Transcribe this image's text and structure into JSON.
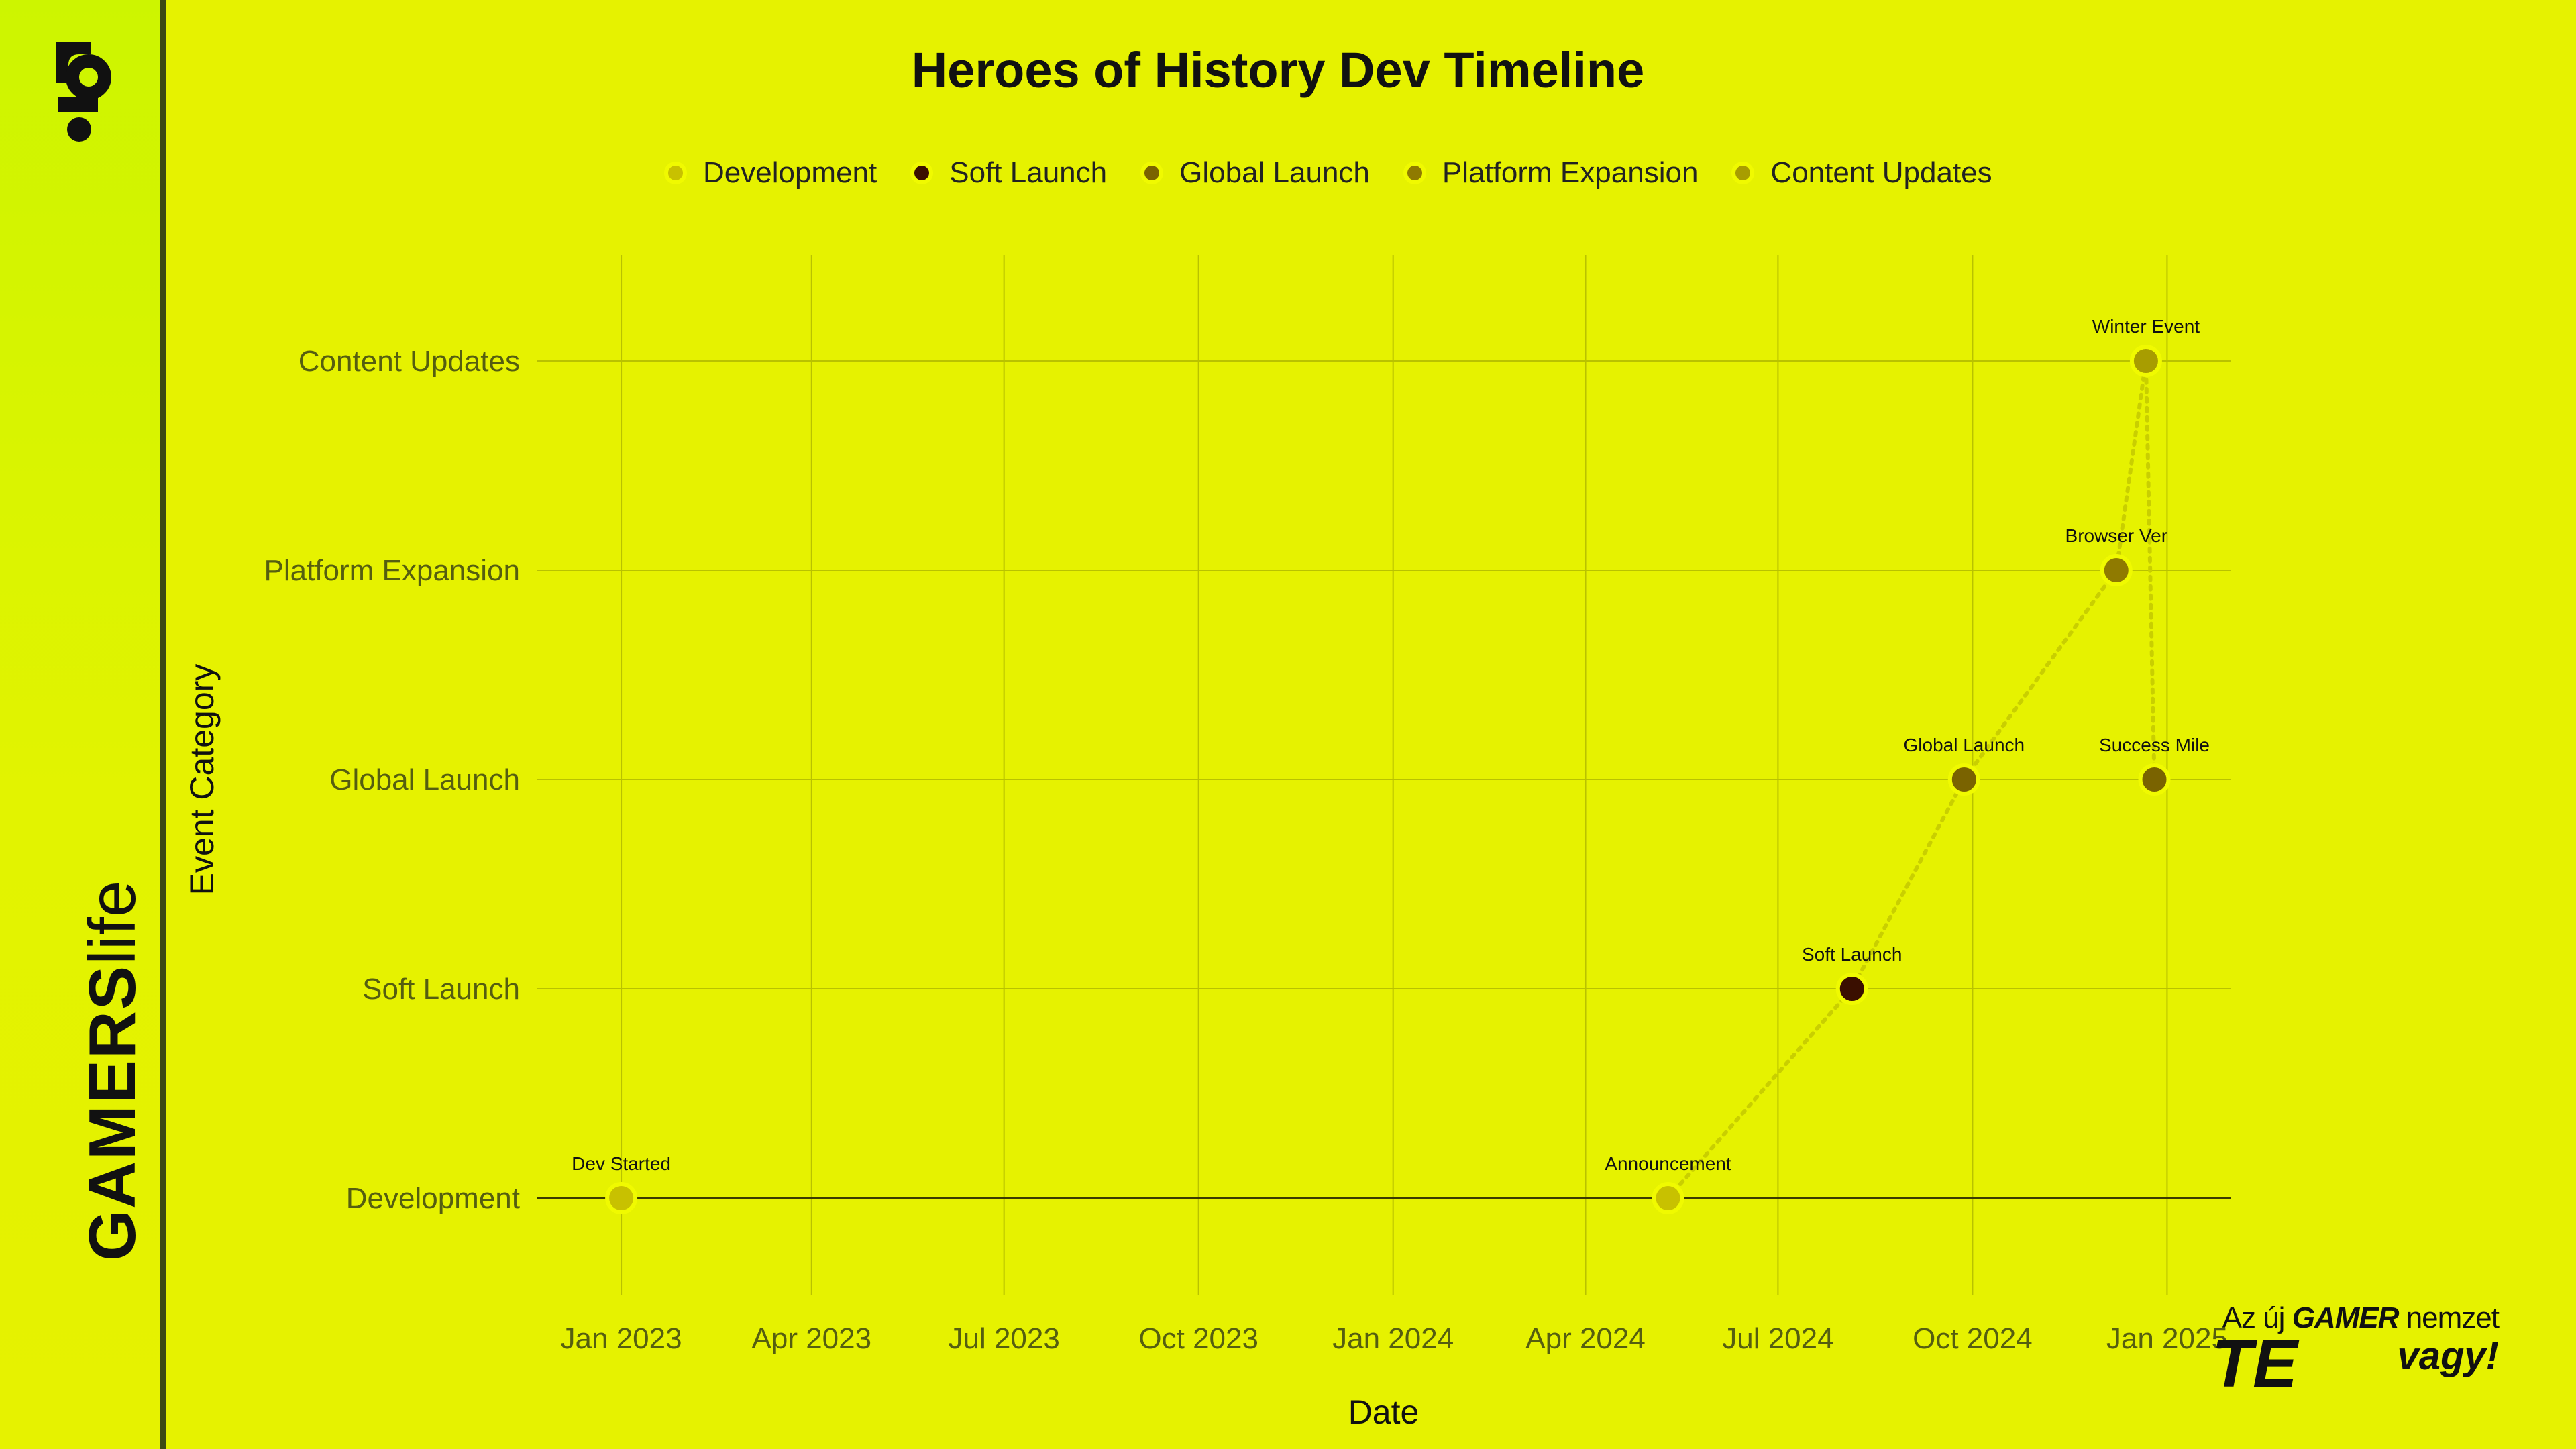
{
  "brand": {
    "name_bold": "GAMERS",
    "name_light": "life"
  },
  "slogan": {
    "prefix": "Az új",
    "gamer": "GAMER",
    "suffix": "nemzet",
    "te": "TE",
    "vagy": "vagy!"
  },
  "colors": {
    "background": "#e6f200",
    "Development": "#c8c100",
    "Soft Launch": "#3a0f00",
    "Global Launch": "#7a6300",
    "Platform Expansion": "#8f7a00",
    "Content Updates": "#a89d00"
  },
  "chart_data": {
    "type": "scatter",
    "title": "Heroes of History Dev Timeline",
    "xlabel": "Date",
    "ylabel": "Event Category",
    "legend_position": "top-center",
    "grid": true,
    "categories": [
      "Development",
      "Soft Launch",
      "Global Launch",
      "Platform Expansion",
      "Content Updates"
    ],
    "x_ticks": [
      {
        "date": "2023-01-01",
        "label": "Jan 2023"
      },
      {
        "date": "2023-04-01",
        "label": "Apr 2023"
      },
      {
        "date": "2023-07-01",
        "label": "Jul 2023"
      },
      {
        "date": "2023-10-01",
        "label": "Oct 2023"
      },
      {
        "date": "2024-01-01",
        "label": "Jan 2024"
      },
      {
        "date": "2024-04-01",
        "label": "Apr 2024"
      },
      {
        "date": "2024-07-01",
        "label": "Jul 2024"
      },
      {
        "date": "2024-10-01",
        "label": "Oct 2024"
      },
      {
        "date": "2025-01-01",
        "label": "Jan 2025"
      }
    ],
    "xlim": [
      "2022-11-22",
      "2025-01-31"
    ],
    "points": [
      {
        "date": "2023-01-01",
        "category": "Development",
        "label": "Dev Started"
      },
      {
        "date": "2024-05-10",
        "category": "Development",
        "label": "Announcement"
      },
      {
        "date": "2024-08-05",
        "category": "Soft Launch",
        "label": "Soft Launch"
      },
      {
        "date": "2024-09-27",
        "category": "Global Launch",
        "label": "Global Launch"
      },
      {
        "date": "2024-12-08",
        "category": "Platform Expansion",
        "label": "Browser Ver"
      },
      {
        "date": "2024-12-22",
        "category": "Content Updates",
        "label": "Winter Event"
      },
      {
        "date": "2024-12-26",
        "category": "Global Launch",
        "label": "Success Mile"
      }
    ]
  }
}
